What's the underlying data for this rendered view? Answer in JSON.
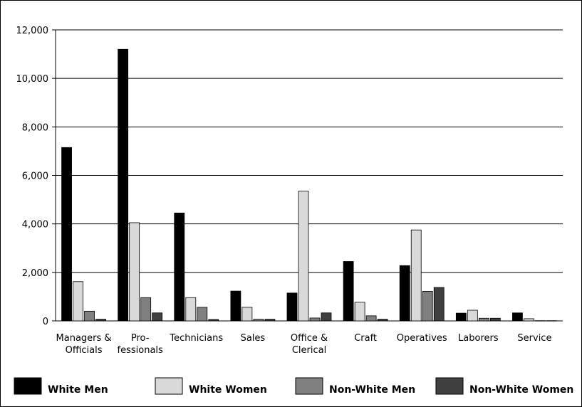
{
  "chart_data": {
    "type": "bar",
    "categories": [
      [
        "Managers &",
        "Officials"
      ],
      [
        "Pro-",
        "fessionals"
      ],
      [
        "Technicians"
      ],
      [
        "Sales"
      ],
      [
        "Office &",
        "Clerical"
      ],
      [
        "Craft"
      ],
      [
        "Operatives"
      ],
      [
        "Laborers"
      ],
      [
        "Service"
      ]
    ],
    "series": [
      {
        "name": "White Men",
        "color": "#000000",
        "values": [
          7150,
          11200,
          4450,
          1230,
          1150,
          2450,
          2280,
          320,
          330
        ]
      },
      {
        "name": "White Women",
        "color": "#d9d9d9",
        "values": [
          1620,
          4050,
          960,
          560,
          5350,
          770,
          3750,
          440,
          90
        ]
      },
      {
        "name": "Non-White Men",
        "color": "#808080",
        "values": [
          400,
          960,
          560,
          70,
          120,
          210,
          1220,
          110,
          10
        ]
      },
      {
        "name": "Non-White Women",
        "color": "#404040",
        "values": [
          70,
          330,
          60,
          70,
          330,
          70,
          1380,
          110,
          10
        ]
      }
    ],
    "ylim": [
      0,
      12000
    ],
    "yticks": [
      "0",
      "2,000",
      "4,000",
      "6,000",
      "8,000",
      "10,000",
      "12,000"
    ],
    "ytick_values": [
      0,
      2000,
      4000,
      6000,
      8000,
      10000,
      12000
    ],
    "grid": true,
    "legend_position": "bottom"
  }
}
